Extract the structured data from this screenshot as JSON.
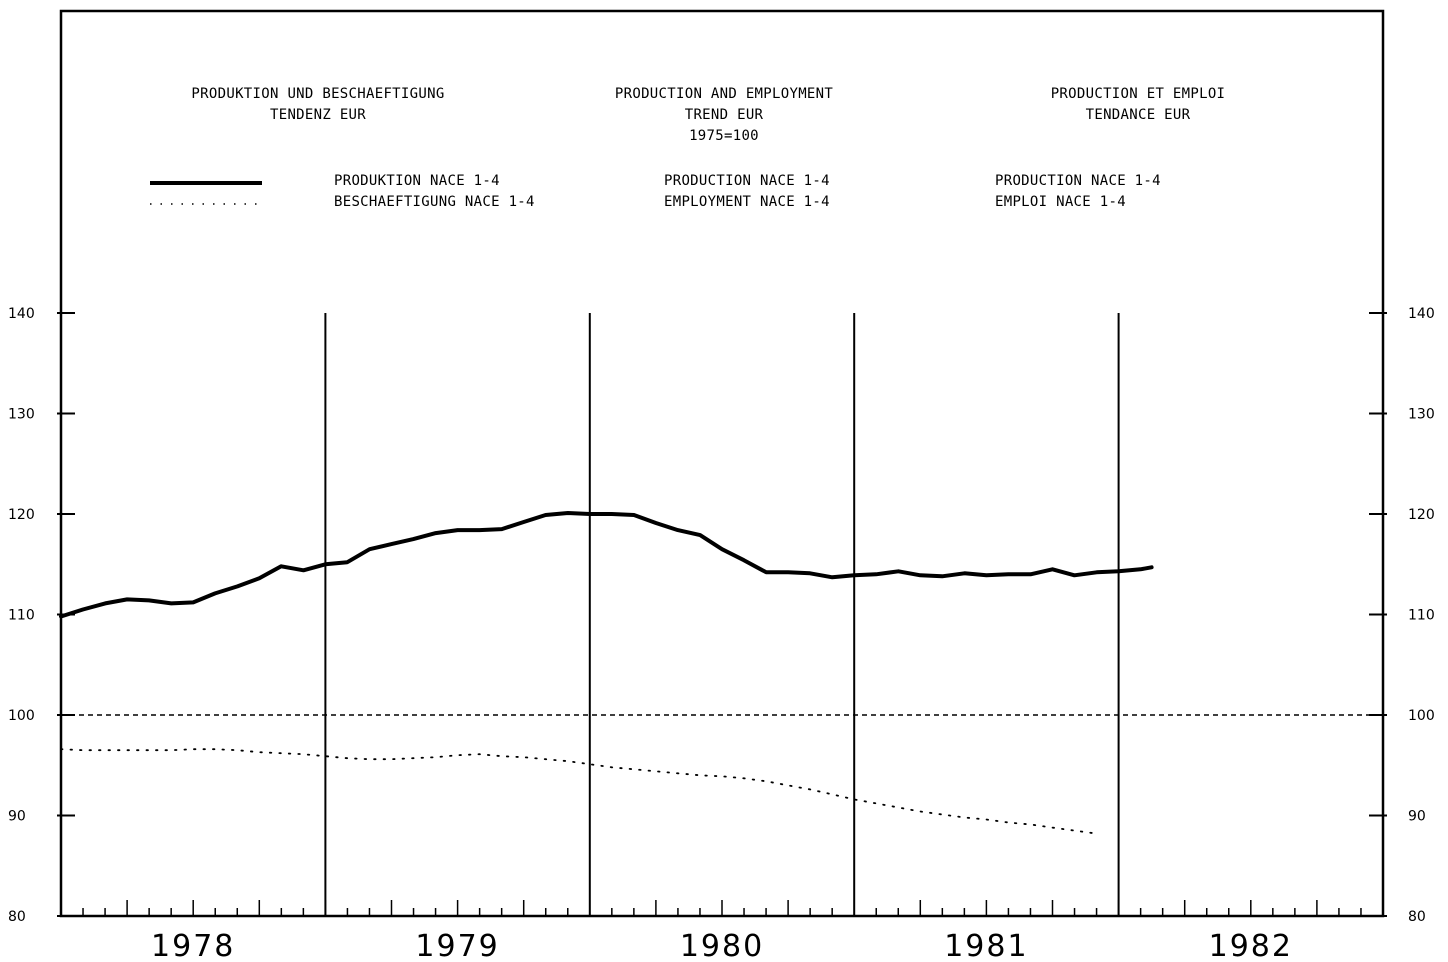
{
  "headers": {
    "de": {
      "line1": "PRODUKTION UND BESCHAEFTIGUNG",
      "line2": "TENDENZ EUR"
    },
    "en": {
      "line1": "PRODUCTION AND EMPLOYMENT",
      "line2": "TREND EUR",
      "line3": "1975=100"
    },
    "fr": {
      "line1": "PRODUCTION ET EMPLOI",
      "line2": "TENDANCE EUR"
    }
  },
  "legend": {
    "production": {
      "de": "PRODUKTION NACE 1-4",
      "en": "PRODUCTION NACE 1-4",
      "fr": "PRODUCTION NACE 1-4"
    },
    "employment": {
      "de": "BESCHAEFTIGUNG NACE 1-4",
      "en": "EMPLOYMENT NACE 1-4",
      "fr": "EMPLOI NACE 1-4"
    }
  },
  "chart_data": {
    "type": "line",
    "title": "",
    "xlabel": "",
    "ylabel": "",
    "x_categories": [
      "1978",
      "1979",
      "1980",
      "1981",
      "1982"
    ],
    "xlim": [
      1977.5,
      1982.5
    ],
    "ylim": [
      80,
      140
    ],
    "yticks": [
      80,
      90,
      100,
      110,
      120,
      130,
      140
    ],
    "ytick_labels": [
      "80",
      "90",
      "100",
      "110",
      "120",
      "130",
      "140"
    ],
    "reference_line": 100,
    "grid": "vertical year separators",
    "series": [
      {
        "name": "PRODUKTION NACE 1-4",
        "style": "solid thick",
        "color": "#000000",
        "x": [
          1977.5,
          1977.583,
          1977.667,
          1977.75,
          1977.833,
          1977.917,
          1978.0,
          1978.083,
          1978.167,
          1978.25,
          1978.333,
          1978.417,
          1978.5,
          1978.583,
          1978.667,
          1978.75,
          1978.833,
          1978.917,
          1979.0,
          1979.083,
          1979.167,
          1979.25,
          1979.333,
          1979.417,
          1979.5,
          1979.583,
          1979.667,
          1979.75,
          1979.833,
          1979.917,
          1980.0,
          1980.083,
          1980.167,
          1980.25,
          1980.333,
          1980.417,
          1980.5,
          1980.583,
          1980.667,
          1980.75,
          1980.833,
          1980.917,
          1981.0,
          1981.083,
          1981.167,
          1981.25,
          1981.333,
          1981.417,
          1981.5,
          1981.583,
          1981.625
        ],
        "y": [
          109.8,
          110.5,
          111.1,
          111.5,
          111.4,
          111.1,
          111.2,
          112.1,
          112.8,
          113.6,
          114.8,
          114.4,
          115.0,
          115.2,
          116.5,
          117.0,
          117.5,
          118.1,
          118.4,
          118.4,
          118.5,
          119.2,
          119.9,
          120.1,
          120.0,
          120.0,
          119.9,
          119.1,
          118.4,
          117.9,
          116.5,
          115.4,
          114.2,
          114.2,
          114.1,
          113.7,
          113.9,
          114.0,
          114.3,
          113.9,
          113.8,
          114.1,
          113.9,
          114.0,
          114.0,
          114.5,
          113.9,
          114.2,
          114.3,
          114.5,
          114.7
        ]
      },
      {
        "name": "BESCHAEFTIGUNG NACE 1-4",
        "style": "dotted",
        "color": "#000000",
        "x": [
          1977.5,
          1977.583,
          1977.667,
          1977.75,
          1977.833,
          1977.917,
          1978.0,
          1978.083,
          1978.167,
          1978.25,
          1978.333,
          1978.417,
          1978.5,
          1978.583,
          1978.667,
          1978.75,
          1978.833,
          1978.917,
          1979.0,
          1979.083,
          1979.167,
          1979.25,
          1979.333,
          1979.417,
          1979.5,
          1979.583,
          1979.667,
          1979.75,
          1979.833,
          1979.917,
          1980.0,
          1980.083,
          1980.167,
          1980.25,
          1980.333,
          1980.417,
          1980.5,
          1980.583,
          1980.667,
          1980.75,
          1980.833,
          1980.917,
          1981.0,
          1981.083,
          1981.167,
          1981.25,
          1981.333,
          1981.417
        ],
        "y": [
          96.6,
          96.5,
          96.5,
          96.5,
          96.5,
          96.5,
          96.6,
          96.6,
          96.5,
          96.3,
          96.2,
          96.1,
          95.9,
          95.7,
          95.6,
          95.6,
          95.7,
          95.8,
          96.0,
          96.1,
          95.9,
          95.8,
          95.6,
          95.4,
          95.1,
          94.8,
          94.6,
          94.4,
          94.2,
          94.0,
          93.9,
          93.7,
          93.4,
          93.0,
          92.6,
          92.1,
          91.6,
          91.2,
          90.8,
          90.4,
          90.1,
          89.8,
          89.6,
          89.3,
          89.1,
          88.8,
          88.5,
          88.2
        ]
      }
    ]
  }
}
